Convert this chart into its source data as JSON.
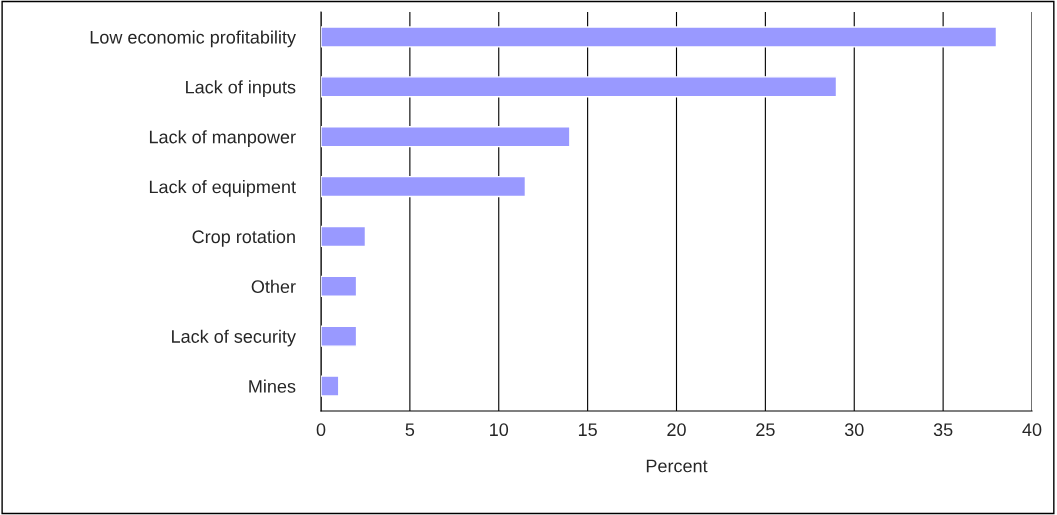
{
  "chart_data": {
    "type": "bar",
    "orientation": "horizontal",
    "xlabel": "Percent",
    "categories": [
      "Low economic profitability",
      "Lack of inputs",
      "Lack of manpower",
      "Lack of equipment",
      "Crop rotation",
      "Other",
      "Lack of security",
      "Mines"
    ],
    "values": [
      38,
      29,
      14,
      11.5,
      2.5,
      2,
      2,
      1
    ],
    "color": "#9999ff",
    "xlim": [
      0,
      40
    ],
    "xticks": [
      0,
      5,
      10,
      15,
      20,
      25,
      30,
      35,
      40
    ],
    "grid": "x"
  }
}
